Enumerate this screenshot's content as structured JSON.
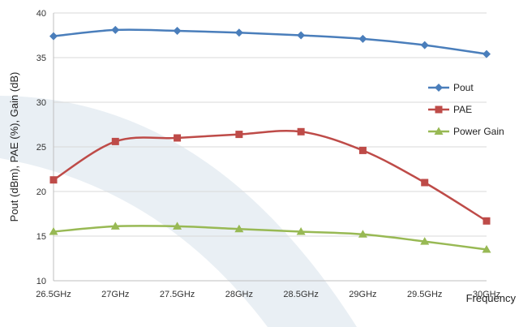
{
  "chart_data": {
    "type": "line",
    "categories": [
      "26.5GHz",
      "27GHz",
      "27.5GHz",
      "28GHz",
      "28.5GHz",
      "29GHz",
      "29.5GHz",
      "30GHz"
    ],
    "series": [
      {
        "name": "Pout",
        "values": [
          37.4,
          38.1,
          38.0,
          37.8,
          37.5,
          37.1,
          36.4,
          35.4
        ],
        "color": "#4a7ebb",
        "marker": "diamond"
      },
      {
        "name": "PAE",
        "values": [
          21.3,
          25.6,
          26.0,
          26.4,
          26.7,
          24.6,
          21.0,
          16.7
        ],
        "color": "#be4b48",
        "marker": "square"
      },
      {
        "name": "Power Gain",
        "values": [
          15.5,
          16.1,
          16.1,
          15.8,
          15.5,
          15.2,
          14.4,
          13.5
        ],
        "color": "#98b954",
        "marker": "triangle"
      }
    ],
    "ylabel": "Pout (dBm), PAE (%), Gain (dB)",
    "xlabel": "Frequency",
    "ylim": [
      10,
      40
    ],
    "yticks": [
      10,
      15,
      20,
      25,
      30,
      35,
      40
    ],
    "grid": true,
    "legend_position": "right"
  }
}
